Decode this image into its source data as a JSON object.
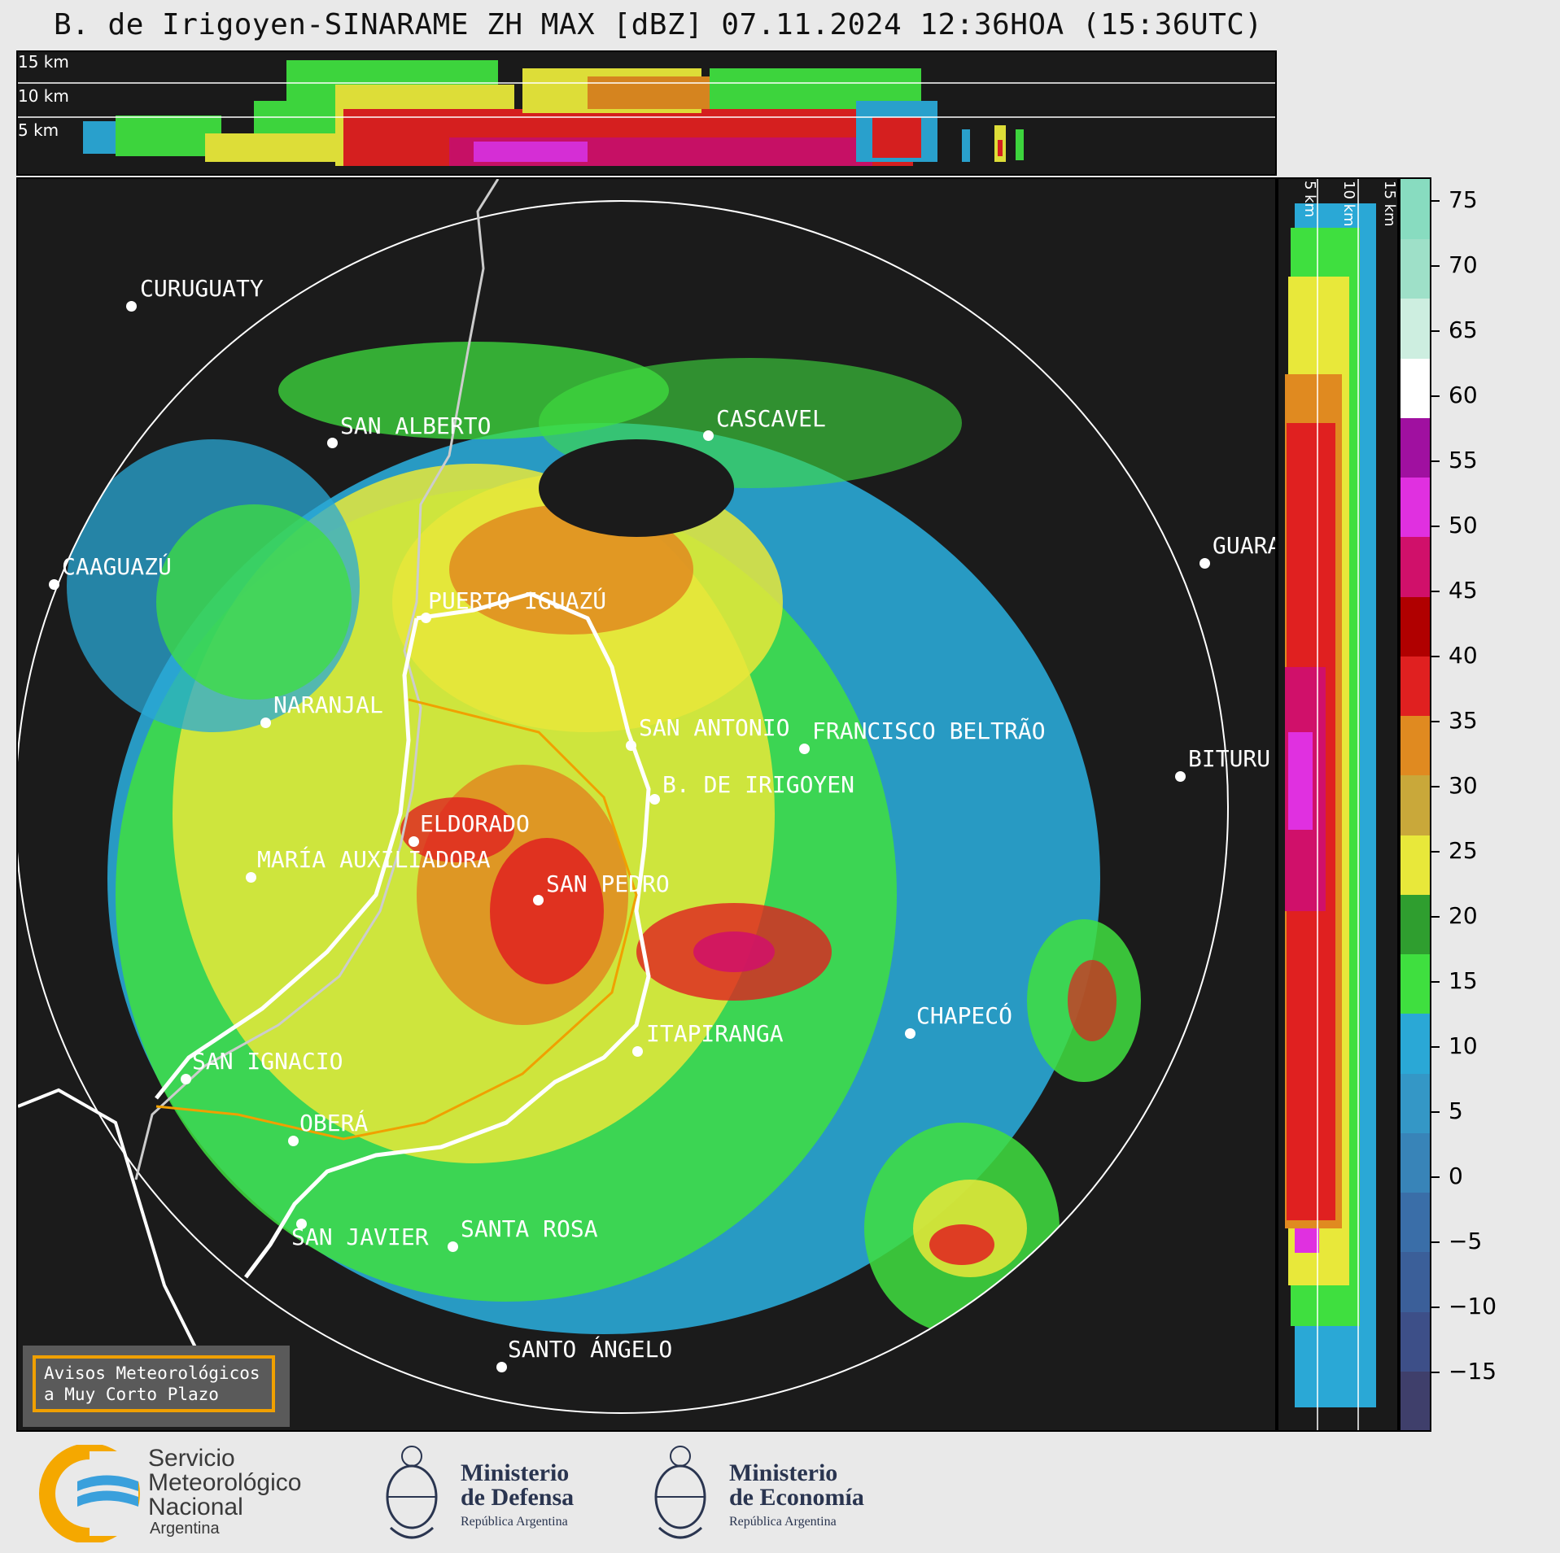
{
  "title": "B. de Irigoyen-SINARAME ZH MAX [dBZ] 07.11.2024 12:36HOA (15:36UTC)",
  "top_panel": {
    "height_labels": [
      "15 km",
      "10 km",
      "5 km"
    ]
  },
  "side_panel": {
    "height_labels": [
      "5 km",
      "10 km",
      "15 km"
    ]
  },
  "cities": [
    {
      "name": "CURUGUATY"
    },
    {
      "name": "SAN ALBERTO"
    },
    {
      "name": "CASCAVEL"
    },
    {
      "name": "CAAGUAZÚ"
    },
    {
      "name": "GUARA"
    },
    {
      "name": "PUERTO IGUAZÚ"
    },
    {
      "name": "NARANJAL"
    },
    {
      "name": "SAN ANTONIO"
    },
    {
      "name": "FRANCISCO BELTRÃO"
    },
    {
      "name": "B. DE IRIGOYEN"
    },
    {
      "name": "BITURU"
    },
    {
      "name": "ELDORADO"
    },
    {
      "name": "MARÍA AUXILIADORA"
    },
    {
      "name": "SAN PEDRO"
    },
    {
      "name": "CHAPECÓ"
    },
    {
      "name": "ITAPIRANGA"
    },
    {
      "name": "SAN IGNACIO"
    },
    {
      "name": "OBERÁ"
    },
    {
      "name": "SAN JAVIER"
    },
    {
      "name": "SANTA ROSA"
    },
    {
      "name": "SANTO ÁNGELO"
    }
  ],
  "colorbar": {
    "unit": "dBZ",
    "ticks": [
      "75",
      "70",
      "65",
      "60",
      "55",
      "50",
      "45",
      "40",
      "35",
      "30",
      "25",
      "20",
      "15",
      "10",
      "5",
      "0",
      "−5",
      "−10",
      "−15"
    ],
    "colors": [
      "#3f3f6b",
      "#3d4f88",
      "#3b5f99",
      "#3a6ea8",
      "#3884b8",
      "#3497c6",
      "#2aa8d6",
      "#3fdf3f",
      "#2f9e2f",
      "#e8e83a",
      "#c9a83a",
      "#e08a20",
      "#e02020",
      "#b00000",
      "#d0106a",
      "#e030e0",
      "#a010a0",
      "#ffffff",
      "#cdeee0",
      "#9ee0c8",
      "#88dcc0"
    ]
  },
  "warning": {
    "line1": "Avisos Meteorológicos",
    "line2": "a Muy Corto Plazo"
  },
  "logos": {
    "smn": {
      "line1": "Servicio",
      "line2": "Meteorológico",
      "line3": "Nacional",
      "line4": "Argentina"
    },
    "defensa": {
      "line1": "Ministerio",
      "line2": "de Defensa",
      "line3": "República Argentina"
    },
    "economia": {
      "line1": "Ministerio",
      "line2": "de Economía",
      "line3": "República Argentina"
    }
  }
}
